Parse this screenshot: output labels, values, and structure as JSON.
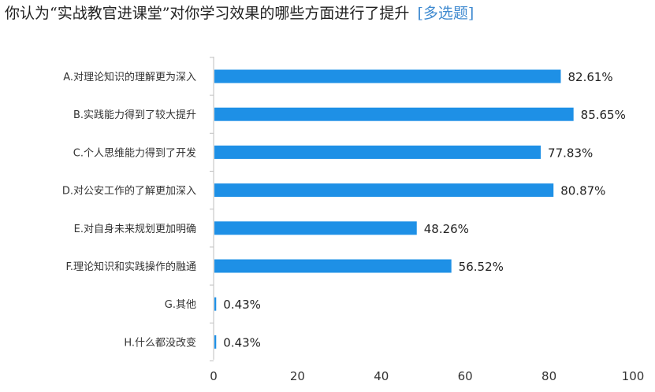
{
  "header": {
    "question": "你认为“实战教官进课堂”对你学习效果的哪些方面进行了提升",
    "tag": "[多选题]"
  },
  "chart_data": {
    "type": "bar",
    "orientation": "horizontal",
    "categories": [
      "A.对理论知识的理解更为深入",
      "B.实践能力得到了较大提升",
      "C.个人思维能力得到了开发",
      "D.对公安工作的了解更加深入",
      "E.对自身未来规划更加明确",
      "F.理论知识和实践操作的融通",
      "G.其他",
      "H.什么都没改变"
    ],
    "values": [
      82.61,
      85.65,
      77.83,
      80.87,
      48.26,
      56.52,
      0.43,
      0.43
    ],
    "value_labels": [
      "82.61%",
      "85.65%",
      "77.83%",
      "80.87%",
      "48.26%",
      "56.52%",
      "0.43%",
      "0.43%"
    ],
    "xlim": [
      0,
      100
    ],
    "xticks": [
      "0",
      "20",
      "40",
      "60",
      "80",
      "100"
    ],
    "bar_color": "#1e90e6",
    "grid": false,
    "title": "",
    "xlabel": "",
    "ylabel": ""
  }
}
